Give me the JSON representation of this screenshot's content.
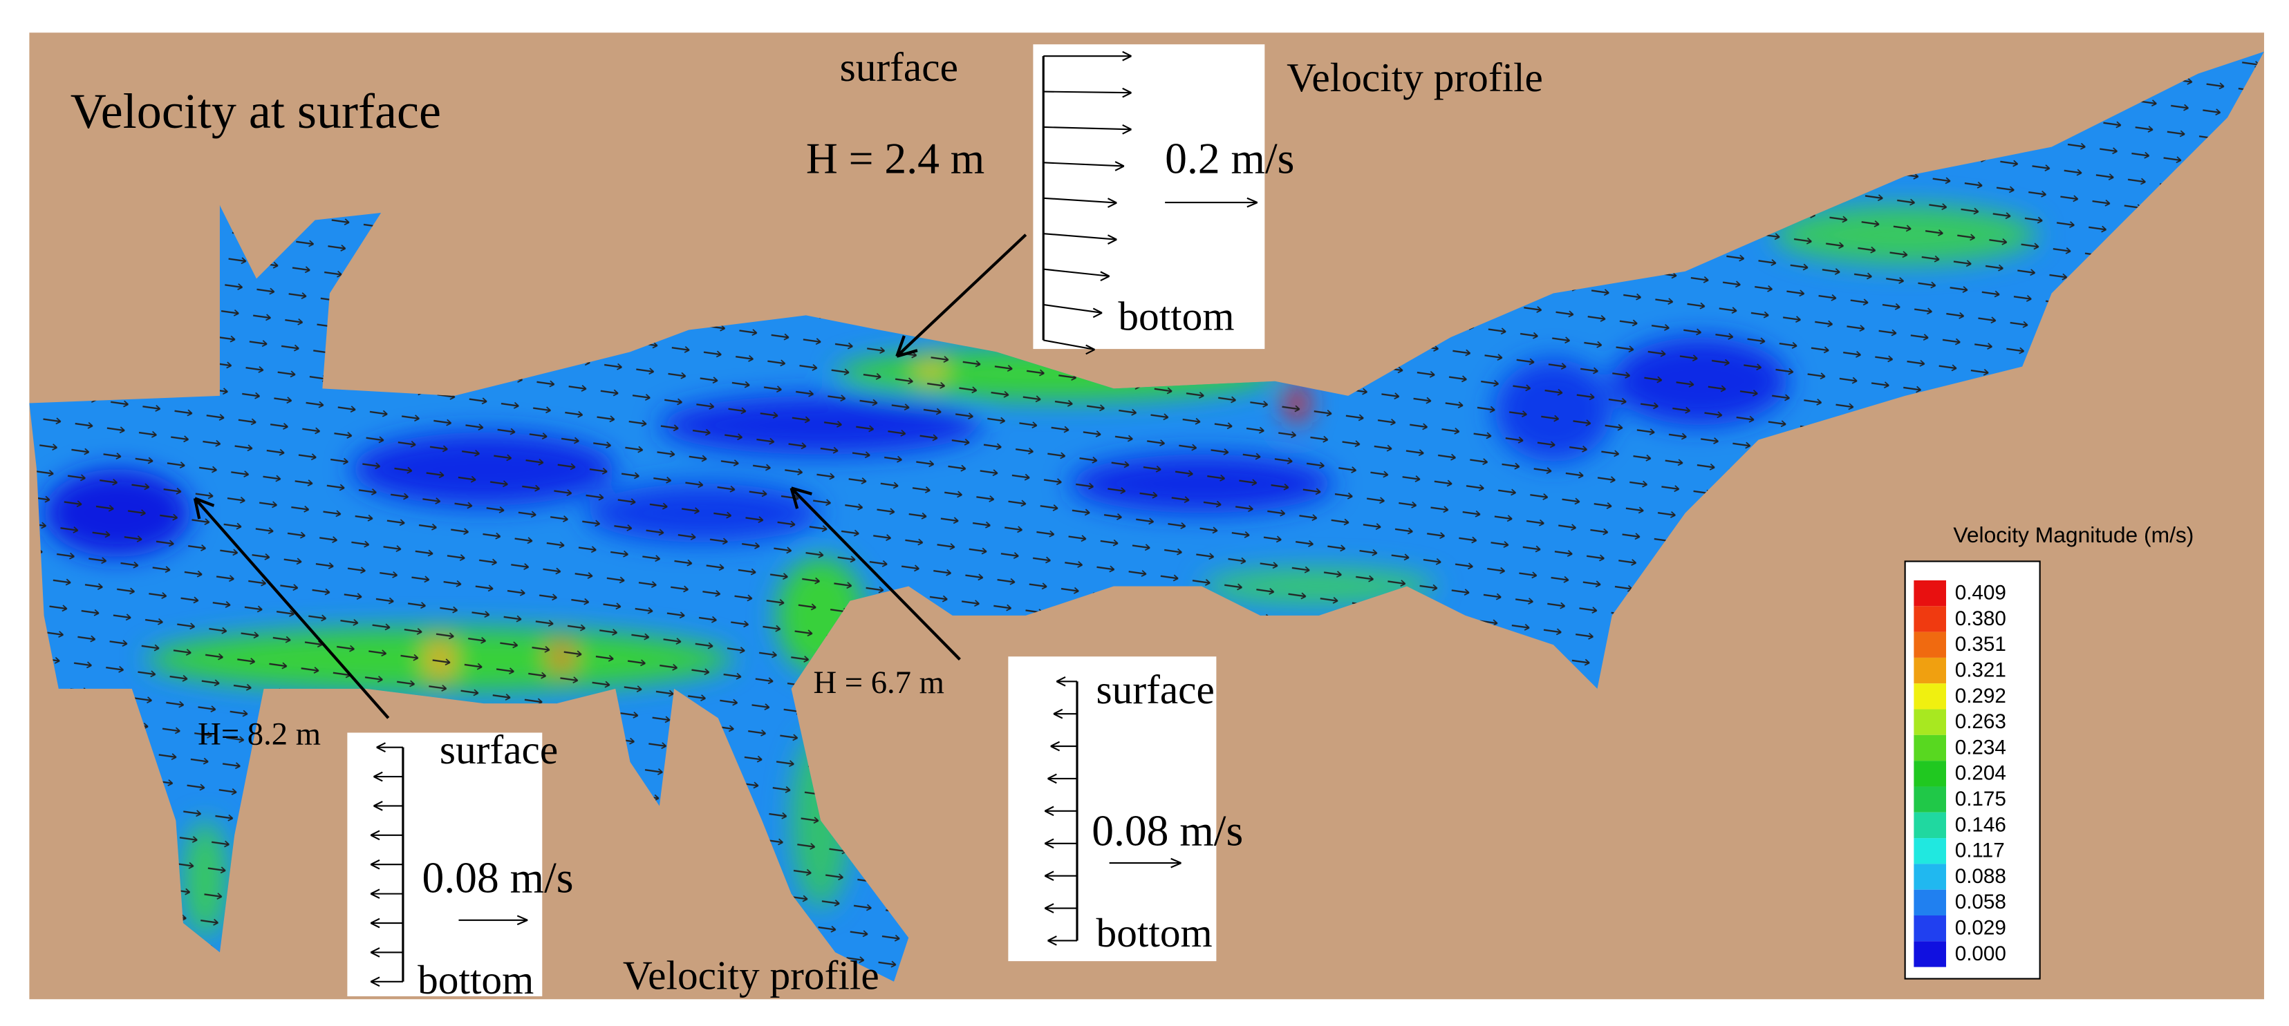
{
  "title": "Velocity at surface",
  "profiles": [
    {
      "surface": "surface",
      "depth": "H = 2.4 m",
      "scale": "0.2 m/s",
      "bottom": "bottom",
      "caption": "Velocity profile"
    },
    {
      "surface": "surface",
      "depth": "H = 6.7 m",
      "scale": "0.08 m/s",
      "bottom": "bottom"
    },
    {
      "surface": "surface",
      "depth": "H= 8.2 m",
      "scale": "0.08 m/s",
      "bottom": "bottom",
      "caption": "Velocity profile"
    }
  ],
  "legend": {
    "title": "Velocity Magnitude (m/s)",
    "labels": [
      "0.409",
      "0.380",
      "0.351",
      "0.321",
      "0.292",
      "0.263",
      "0.234",
      "0.204",
      "0.175",
      "0.146",
      "0.117",
      "0.088",
      "0.058",
      "0.029",
      "0.000"
    ]
  }
}
